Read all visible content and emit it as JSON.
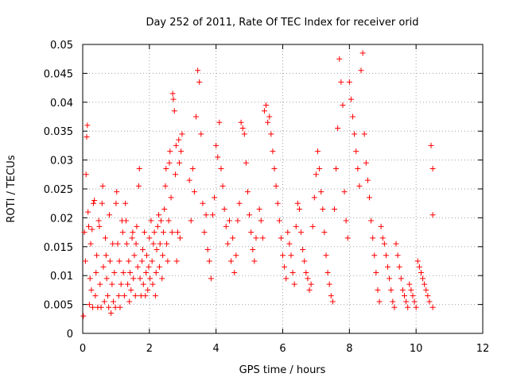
{
  "chart_data": {
    "type": "scatter",
    "title": "Day 252 of 2011, Rate Of TEC Index for receiver orid",
    "xlabel": "GPS time / hours",
    "ylabel": "ROTI / TECUs",
    "xlim": [
      0,
      12
    ],
    "ylim": [
      0,
      0.05
    ],
    "xticks": [
      "0",
      "2",
      "4",
      "6",
      "8",
      "10",
      "12"
    ],
    "yticks": [
      "0",
      "0.005",
      "0.01",
      "0.015",
      "0.02",
      "0.025",
      "0.03",
      "0.035",
      "0.04",
      "0.045",
      "0.05"
    ],
    "grid": true,
    "marker": "+",
    "color": "#ff0000",
    "series": [
      {
        "points": [
          [
            0.02,
            0.003
          ],
          [
            0.05,
            0.0175
          ],
          [
            0.08,
            0.0125
          ],
          [
            0.1,
            0.0275
          ],
          [
            0.12,
            0.034
          ],
          [
            0.14,
            0.036
          ],
          [
            0.16,
            0.021
          ],
          [
            0.18,
            0.0185
          ],
          [
            0.2,
            0.005
          ],
          [
            0.22,
            0.0095
          ],
          [
            0.24,
            0.0155
          ],
          [
            0.26,
            0.0075
          ],
          [
            0.28,
            0.018
          ],
          [
            0.3,
            0.0045
          ],
          [
            0.32,
            0.0225
          ],
          [
            0.35,
            0.023
          ],
          [
            0.38,
            0.0065
          ],
          [
            0.4,
            0.0105
          ],
          [
            0.42,
            0.0135
          ],
          [
            0.45,
            0.0045
          ],
          [
            0.48,
            0.0195
          ],
          [
            0.5,
            0.0185
          ],
          [
            0.52,
            0.0085
          ],
          [
            0.55,
            0.0045
          ],
          [
            0.58,
            0.0225
          ],
          [
            0.6,
            0.0255
          ],
          [
            0.62,
            0.0115
          ],
          [
            0.65,
            0.0055
          ],
          [
            0.68,
            0.0165
          ],
          [
            0.7,
            0.0135
          ],
          [
            0.72,
            0.0095
          ],
          [
            0.75,
            0.0065
          ],
          [
            0.78,
            0.0045
          ],
          [
            0.8,
            0.0205
          ],
          [
            0.82,
            0.0125
          ],
          [
            0.85,
            0.0035
          ],
          [
            0.88,
            0.0085
          ],
          [
            0.9,
            0.0155
          ],
          [
            0.92,
            0.0055
          ],
          [
            0.95,
            0.0105
          ],
          [
            0.98,
            0.0045
          ],
          [
            1.0,
            0.0225
          ],
          [
            1.02,
            0.0245
          ],
          [
            1.05,
            0.0155
          ],
          [
            1.08,
            0.0065
          ],
          [
            1.1,
            0.0125
          ],
          [
            1.12,
            0.0045
          ],
          [
            1.15,
            0.0085
          ],
          [
            1.18,
            0.0195
          ],
          [
            1.2,
            0.0175
          ],
          [
            1.22,
            0.0105
          ],
          [
            1.25,
            0.0065
          ],
          [
            1.28,
            0.0225
          ],
          [
            1.3,
            0.0195
          ],
          [
            1.32,
            0.0155
          ],
          [
            1.35,
            0.0085
          ],
          [
            1.38,
            0.0125
          ],
          [
            1.4,
            0.0055
          ],
          [
            1.42,
            0.0105
          ],
          [
            1.45,
            0.0075
          ],
          [
            1.48,
            0.0165
          ],
          [
            1.5,
            0.0175
          ],
          [
            1.52,
            0.0095
          ],
          [
            1.55,
            0.0135
          ],
          [
            1.58,
            0.0065
          ],
          [
            1.6,
            0.0155
          ],
          [
            1.62,
            0.0185
          ],
          [
            1.65,
            0.0115
          ],
          [
            1.68,
            0.0255
          ],
          [
            1.7,
            0.0285
          ],
          [
            1.72,
            0.0095
          ],
          [
            1.75,
            0.0065
          ],
          [
            1.78,
            0.0125
          ],
          [
            1.8,
            0.0145
          ],
          [
            1.82,
            0.0085
          ],
          [
            1.85,
            0.0175
          ],
          [
            1.88,
            0.0065
          ],
          [
            1.9,
            0.0105
          ],
          [
            1.92,
            0.0135
          ],
          [
            1.95,
            0.0075
          ],
          [
            1.98,
            0.0115
          ],
          [
            2.0,
            0.0165
          ],
          [
            2.02,
            0.0095
          ],
          [
            2.05,
            0.0195
          ],
          [
            2.08,
            0.0125
          ],
          [
            2.1,
            0.0085
          ],
          [
            2.12,
            0.0155
          ],
          [
            2.15,
            0.0175
          ],
          [
            2.18,
            0.0065
          ],
          [
            2.2,
            0.0105
          ],
          [
            2.22,
            0.0145
          ],
          [
            2.25,
            0.0185
          ],
          [
            2.28,
            0.0205
          ],
          [
            2.3,
            0.0115
          ],
          [
            2.32,
            0.0155
          ],
          [
            2.35,
            0.0195
          ],
          [
            2.38,
            0.0095
          ],
          [
            2.4,
            0.0135
          ],
          [
            2.42,
            0.0175
          ],
          [
            2.45,
            0.0215
          ],
          [
            2.48,
            0.0255
          ],
          [
            2.5,
            0.0285
          ],
          [
            2.52,
            0.0155
          ],
          [
            2.55,
            0.0125
          ],
          [
            2.58,
            0.0195
          ],
          [
            2.6,
            0.0295
          ],
          [
            2.62,
            0.0315
          ],
          [
            2.65,
            0.0235
          ],
          [
            2.68,
            0.0175
          ],
          [
            2.7,
            0.0415
          ],
          [
            2.72,
            0.0405
          ],
          [
            2.75,
            0.0385
          ],
          [
            2.78,
            0.0275
          ],
          [
            2.8,
            0.0325
          ],
          [
            2.82,
            0.0125
          ],
          [
            2.85,
            0.0175
          ],
          [
            2.88,
            0.0335
          ],
          [
            2.9,
            0.0295
          ],
          [
            2.92,
            0.0165
          ],
          [
            2.95,
            0.0315
          ],
          [
            2.98,
            0.0345
          ],
          [
            3.2,
            0.0265
          ],
          [
            3.25,
            0.0195
          ],
          [
            3.3,
            0.0285
          ],
          [
            3.35,
            0.0245
          ],
          [
            3.4,
            0.0375
          ],
          [
            3.45,
            0.0455
          ],
          [
            3.5,
            0.0435
          ],
          [
            3.55,
            0.0345
          ],
          [
            3.6,
            0.0225
          ],
          [
            3.65,
            0.0175
          ],
          [
            3.7,
            0.0205
          ],
          [
            3.75,
            0.0145
          ],
          [
            3.8,
            0.0125
          ],
          [
            3.85,
            0.0095
          ],
          [
            3.9,
            0.0205
          ],
          [
            3.95,
            0.0235
          ],
          [
            4.0,
            0.0325
          ],
          [
            4.05,
            0.0305
          ],
          [
            4.1,
            0.0365
          ],
          [
            4.15,
            0.0285
          ],
          [
            4.2,
            0.0255
          ],
          [
            4.25,
            0.0215
          ],
          [
            4.3,
            0.0185
          ],
          [
            4.35,
            0.0155
          ],
          [
            4.4,
            0.0195
          ],
          [
            4.45,
            0.0125
          ],
          [
            4.5,
            0.0165
          ],
          [
            4.55,
            0.0105
          ],
          [
            4.6,
            0.0135
          ],
          [
            4.65,
            0.0195
          ],
          [
            4.7,
            0.0225
          ],
          [
            4.75,
            0.0365
          ],
          [
            4.8,
            0.0355
          ],
          [
            4.85,
            0.0345
          ],
          [
            4.9,
            0.0295
          ],
          [
            4.95,
            0.0245
          ],
          [
            5.0,
            0.0205
          ],
          [
            5.05,
            0.0175
          ],
          [
            5.1,
            0.0145
          ],
          [
            5.15,
            0.0125
          ],
          [
            5.2,
            0.0165
          ],
          [
            5.3,
            0.0215
          ],
          [
            5.35,
            0.0195
          ],
          [
            5.4,
            0.0165
          ],
          [
            5.45,
            0.0385
          ],
          [
            5.5,
            0.0395
          ],
          [
            5.55,
            0.0365
          ],
          [
            5.6,
            0.0375
          ],
          [
            5.65,
            0.0345
          ],
          [
            5.7,
            0.0315
          ],
          [
            5.75,
            0.0285
          ],
          [
            5.8,
            0.0255
          ],
          [
            5.85,
            0.0225
          ],
          [
            5.9,
            0.0195
          ],
          [
            5.95,
            0.0165
          ],
          [
            6.0,
            0.0135
          ],
          [
            6.05,
            0.0115
          ],
          [
            6.1,
            0.0095
          ],
          [
            6.15,
            0.0175
          ],
          [
            6.2,
            0.0155
          ],
          [
            6.25,
            0.0135
          ],
          [
            6.3,
            0.0105
          ],
          [
            6.35,
            0.0085
          ],
          [
            6.4,
            0.0185
          ],
          [
            6.45,
            0.0225
          ],
          [
            6.5,
            0.0215
          ],
          [
            6.55,
            0.0175
          ],
          [
            6.6,
            0.0145
          ],
          [
            6.65,
            0.0125
          ],
          [
            6.7,
            0.0105
          ],
          [
            6.75,
            0.0095
          ],
          [
            6.8,
            0.0075
          ],
          [
            6.85,
            0.0085
          ],
          [
            6.9,
            0.0185
          ],
          [
            6.95,
            0.0235
          ],
          [
            7.0,
            0.0275
          ],
          [
            7.05,
            0.0315
          ],
          [
            7.1,
            0.0285
          ],
          [
            7.15,
            0.0245
          ],
          [
            7.2,
            0.0215
          ],
          [
            7.25,
            0.0175
          ],
          [
            7.3,
            0.0135
          ],
          [
            7.35,
            0.0105
          ],
          [
            7.4,
            0.0085
          ],
          [
            7.45,
            0.0065
          ],
          [
            7.5,
            0.0055
          ],
          [
            7.55,
            0.0215
          ],
          [
            7.6,
            0.0285
          ],
          [
            7.65,
            0.0355
          ],
          [
            7.7,
            0.0475
          ],
          [
            7.75,
            0.0435
          ],
          [
            7.8,
            0.0395
          ],
          [
            7.85,
            0.0245
          ],
          [
            7.9,
            0.0195
          ],
          [
            7.95,
            0.0165
          ],
          [
            8.0,
            0.0435
          ],
          [
            8.05,
            0.0405
          ],
          [
            8.1,
            0.0375
          ],
          [
            8.15,
            0.0345
          ],
          [
            8.2,
            0.0315
          ],
          [
            8.25,
            0.0285
          ],
          [
            8.3,
            0.0255
          ],
          [
            8.35,
            0.0455
          ],
          [
            8.4,
            0.0485
          ],
          [
            8.45,
            0.0345
          ],
          [
            8.5,
            0.0295
          ],
          [
            8.55,
            0.0265
          ],
          [
            8.6,
            0.0235
          ],
          [
            8.65,
            0.0195
          ],
          [
            8.7,
            0.0165
          ],
          [
            8.75,
            0.0135
          ],
          [
            8.8,
            0.0105
          ],
          [
            8.85,
            0.0075
          ],
          [
            8.9,
            0.0055
          ],
          [
            8.95,
            0.0185
          ],
          [
            9.0,
            0.0165
          ],
          [
            9.05,
            0.0155
          ],
          [
            9.1,
            0.0135
          ],
          [
            9.15,
            0.0115
          ],
          [
            9.2,
            0.0095
          ],
          [
            9.25,
            0.0075
          ],
          [
            9.3,
            0.0055
          ],
          [
            9.35,
            0.0045
          ],
          [
            9.4,
            0.0155
          ],
          [
            9.45,
            0.0135
          ],
          [
            9.5,
            0.0115
          ],
          [
            9.55,
            0.0095
          ],
          [
            9.6,
            0.0075
          ],
          [
            9.65,
            0.0065
          ],
          [
            9.7,
            0.0055
          ],
          [
            9.75,
            0.0045
          ],
          [
            9.8,
            0.0085
          ],
          [
            9.85,
            0.0075
          ],
          [
            9.9,
            0.0065
          ],
          [
            9.95,
            0.0055
          ],
          [
            10.0,
            0.0045
          ],
          [
            10.05,
            0.0125
          ],
          [
            10.1,
            0.0115
          ],
          [
            10.15,
            0.0105
          ],
          [
            10.2,
            0.0095
          ],
          [
            10.25,
            0.0085
          ],
          [
            10.3,
            0.0075
          ],
          [
            10.35,
            0.0065
          ],
          [
            10.4,
            0.0055
          ],
          [
            10.45,
            0.0325
          ],
          [
            10.5,
            0.0285
          ],
          [
            10.5,
            0.0205
          ],
          [
            10.5,
            0.0045
          ]
        ]
      }
    ]
  }
}
